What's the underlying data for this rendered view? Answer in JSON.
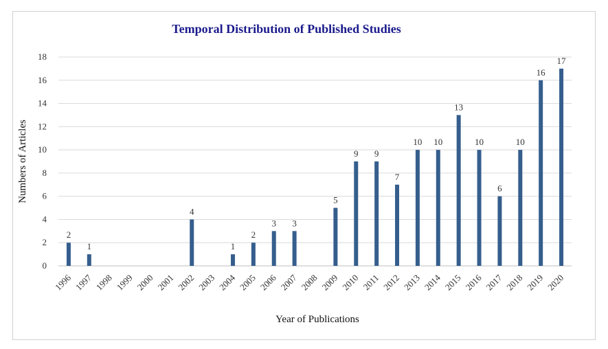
{
  "chart_data": {
    "type": "bar",
    "title": "Temporal Distribution of Published Studies",
    "xlabel": "Year of Publications",
    "ylabel": "Numbers of Articles",
    "categories": [
      "1996",
      "1997",
      "1998",
      "1999",
      "2000",
      "2001",
      "2002",
      "2003",
      "2004",
      "2005",
      "2006",
      "2007",
      "2008",
      "2009",
      "2010",
      "2011",
      "2012",
      "2013",
      "2014",
      "2015",
      "2016",
      "2017",
      "2018",
      "2019",
      "2020"
    ],
    "values": [
      2,
      1,
      0,
      0,
      0,
      0,
      4,
      0,
      1,
      2,
      3,
      3,
      0,
      5,
      9,
      9,
      7,
      10,
      10,
      13,
      10,
      6,
      10,
      16,
      17
    ],
    "yticks": [
      "0",
      "2",
      "4",
      "6",
      "8",
      "10",
      "12",
      "14",
      "16",
      "18"
    ],
    "ylim": [
      0,
      18
    ],
    "grid": true,
    "legend": "none",
    "bar_color": "#355E8D"
  }
}
